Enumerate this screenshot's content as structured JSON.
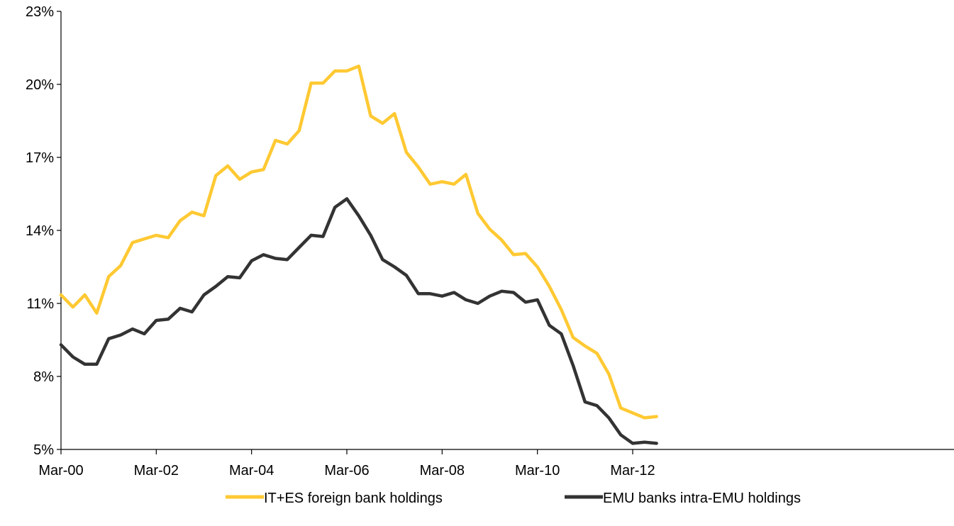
{
  "chart_data": {
    "type": "line",
    "title": "",
    "xlabel": "",
    "ylabel": "",
    "ylim": [
      5,
      23
    ],
    "y_ticks": [
      "5%",
      "8%",
      "11%",
      "14%",
      "17%",
      "20%",
      "23%"
    ],
    "x_ticks": [
      "Mar-00",
      "Mar-02",
      "Mar-04",
      "Mar-06",
      "Mar-08",
      "Mar-10",
      "Mar-12"
    ],
    "grid": false,
    "legend_position": "bottom",
    "x": [
      "Mar-00",
      "Jun-00",
      "Sep-00",
      "Dec-00",
      "Mar-01",
      "Jun-01",
      "Sep-01",
      "Dec-01",
      "Mar-02",
      "Jun-02",
      "Sep-02",
      "Dec-02",
      "Mar-03",
      "Jun-03",
      "Sep-03",
      "Dec-03",
      "Mar-04",
      "Jun-04",
      "Sep-04",
      "Dec-04",
      "Mar-05",
      "Jun-05",
      "Sep-05",
      "Dec-05",
      "Mar-06",
      "Jun-06",
      "Sep-06",
      "Dec-06",
      "Mar-07",
      "Jun-07",
      "Sep-07",
      "Dec-07",
      "Mar-08",
      "Jun-08",
      "Sep-08",
      "Dec-08",
      "Mar-09",
      "Jun-09",
      "Sep-09",
      "Dec-09",
      "Mar-10",
      "Jun-10",
      "Sep-10",
      "Dec-10",
      "Mar-11",
      "Jun-11",
      "Sep-11",
      "Dec-11",
      "Mar-12",
      "Jun-12",
      "Sep-12"
    ],
    "series": [
      {
        "name": "IT+ES foreign bank holdings",
        "color": "#FFC933",
        "values": [
          11.35,
          10.85,
          11.35,
          10.6,
          12.1,
          12.55,
          13.5,
          13.65,
          13.8,
          13.7,
          14.4,
          14.75,
          14.6,
          16.25,
          16.65,
          16.1,
          16.4,
          16.5,
          17.7,
          17.55,
          18.1,
          20.05,
          20.05,
          20.55,
          20.55,
          20.75,
          18.7,
          18.4,
          18.8,
          17.2,
          16.6,
          15.9,
          16.0,
          15.9,
          16.3,
          14.7,
          14.05,
          13.6,
          13.0,
          13.05,
          12.5,
          11.7,
          10.75,
          9.6,
          9.25,
          8.95,
          8.1,
          6.7,
          6.5,
          6.3,
          6.35
        ]
      },
      {
        "name": "EMU banks intra-EMU holdings",
        "color": "#333333",
        "values": [
          9.3,
          8.8,
          8.5,
          8.5,
          9.55,
          9.7,
          9.95,
          9.75,
          10.3,
          10.35,
          10.8,
          10.65,
          11.35,
          11.7,
          12.1,
          12.05,
          12.75,
          13.0,
          12.85,
          12.8,
          13.3,
          13.8,
          13.75,
          14.95,
          15.3,
          14.6,
          13.8,
          12.8,
          12.5,
          12.15,
          11.4,
          11.4,
          11.3,
          11.45,
          11.15,
          11.0,
          11.3,
          11.5,
          11.45,
          11.05,
          11.15,
          10.1,
          9.75,
          8.45,
          6.95,
          6.8,
          6.3,
          5.6,
          5.25,
          5.3,
          5.25
        ]
      }
    ]
  }
}
